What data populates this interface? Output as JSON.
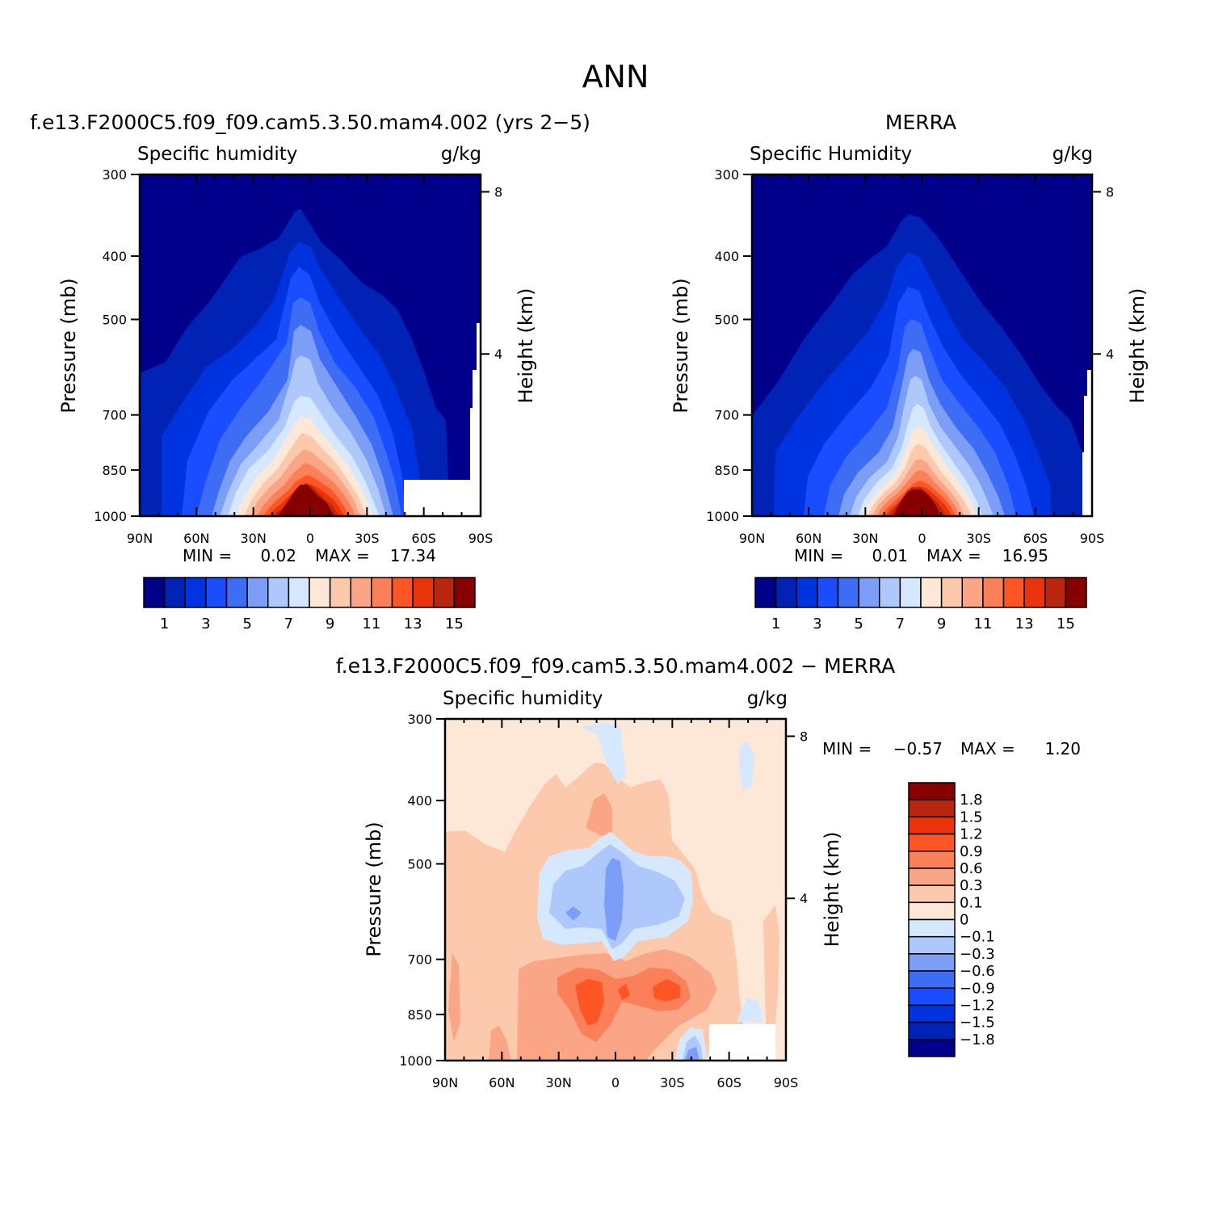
{
  "figure_title": "ANN",
  "chart_data": [
    {
      "type": "heatmap",
      "title": "f.e13.F2000C5.f09_f09.cam5.3.50.mam4.002 (yrs 2−5)",
      "variable": "Specific humidity",
      "units": "g/kg",
      "ylabel": "Pressure (mb)",
      "y2label": "Height (km)",
      "x_ticks": [
        "90N",
        "60N",
        "30N",
        "0",
        "30S",
        "60S",
        "90S"
      ],
      "y_ticks": [
        "300",
        "400",
        "500",
        "700",
        "850",
        "1000"
      ],
      "y2_ticks": [
        "8",
        "4"
      ],
      "ylim": [
        1000,
        300
      ],
      "y_scale": "log",
      "min_label": "MIN =",
      "min_value": "0.02",
      "max_label": "MAX =",
      "max_value": "17.34",
      "min": 0.02,
      "max": 17.34,
      "colorbar": {
        "orientation": "horizontal",
        "levels": [
          1,
          2,
          3,
          4,
          5,
          6,
          7,
          8,
          9,
          10,
          11,
          12,
          13,
          14,
          15,
          16
        ],
        "tick_labels": [
          "1",
          "3",
          "5",
          "7",
          "9",
          "11",
          "13",
          "15"
        ],
        "colors": [
          "#00008b",
          "#0022b5",
          "#0033e0",
          "#1a4dff",
          "#3d6cf5",
          "#7d9ef6",
          "#aec8fb",
          "#d6e8fe",
          "#fde8d8",
          "#fcc9ad",
          "#fba587",
          "#fb7f59",
          "#fd5524",
          "#e8330b",
          "#b9250f",
          "#870000"
        ]
      }
    },
    {
      "type": "heatmap",
      "title": "MERRA",
      "variable": "Specific Humidity",
      "units": "g/kg",
      "ylabel": "Pressure (mb)",
      "y2label": "Height (km)",
      "x_ticks": [
        "90N",
        "60N",
        "30N",
        "0",
        "30S",
        "60S",
        "90S"
      ],
      "y_ticks": [
        "300",
        "400",
        "500",
        "700",
        "850",
        "1000"
      ],
      "y2_ticks": [
        "8",
        "4"
      ],
      "ylim": [
        1000,
        300
      ],
      "y_scale": "log",
      "min_label": "MIN =",
      "min_value": "0.01",
      "max_label": "MAX =",
      "max_value": "16.95",
      "min": 0.01,
      "max": 16.95,
      "colorbar": {
        "orientation": "horizontal",
        "levels": [
          1,
          2,
          3,
          4,
          5,
          6,
          7,
          8,
          9,
          10,
          11,
          12,
          13,
          14,
          15,
          16
        ],
        "tick_labels": [
          "1",
          "3",
          "5",
          "7",
          "9",
          "11",
          "13",
          "15"
        ],
        "colors": [
          "#00008b",
          "#0022b5",
          "#0033e0",
          "#1a4dff",
          "#3d6cf5",
          "#7d9ef6",
          "#aec8fb",
          "#d6e8fe",
          "#fde8d8",
          "#fcc9ad",
          "#fba587",
          "#fb7f59",
          "#fd5524",
          "#e8330b",
          "#b9250f",
          "#870000"
        ]
      }
    },
    {
      "type": "heatmap",
      "title": "f.e13.F2000C5.f09_f09.cam5.3.50.mam4.002 − MERRA",
      "variable": "Specific humidity",
      "units": "g/kg",
      "ylabel": "Pressure (mb)",
      "y2label": "Height (km)",
      "x_ticks": [
        "90N",
        "60N",
        "30N",
        "0",
        "30S",
        "60S",
        "90S"
      ],
      "y_ticks": [
        "300",
        "400",
        "500",
        "700",
        "850",
        "1000"
      ],
      "y2_ticks": [
        "8",
        "4"
      ],
      "ylim": [
        1000,
        300
      ],
      "y_scale": "log",
      "min_label": "MIN =",
      "min_value": "−0.57",
      "max_label": "MAX =",
      "max_value": "1.20",
      "min": -0.57,
      "max": 1.2,
      "colorbar": {
        "orientation": "vertical",
        "tick_labels": [
          "1.8",
          "1.5",
          "1.2",
          "0.9",
          "0.6",
          "0.3",
          "0.1",
          "0",
          "−0.1",
          "−0.3",
          "−0.6",
          "−0.9",
          "−1.2",
          "−1.5",
          "−1.8"
        ],
        "colors_top_to_bottom": [
          "#870000",
          "#b9250f",
          "#e8330b",
          "#fd5524",
          "#fb7f59",
          "#fba587",
          "#fcc9ad",
          "#fde8d8",
          "#d6e8fe",
          "#aec8fb",
          "#7d9ef6",
          "#3d6cf5",
          "#1a4dff",
          "#0033e0",
          "#0022b5",
          "#00008b"
        ]
      }
    }
  ]
}
